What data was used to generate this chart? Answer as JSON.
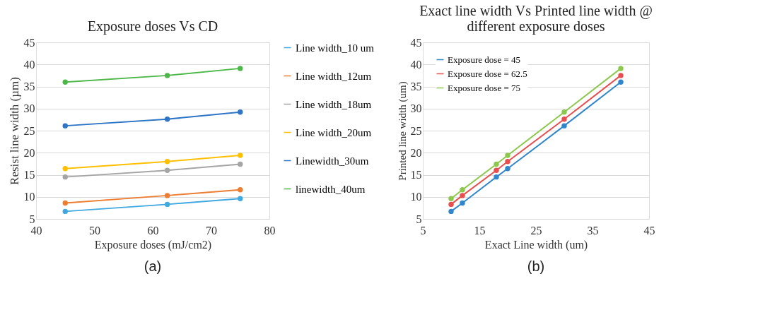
{
  "chart_data": [
    {
      "type": "line",
      "title": "Exposure doses Vs CD",
      "xlabel": "Exposure doses (mJ/cm2)",
      "ylabel": "Resist line width (µm)",
      "x": [
        45,
        62.5,
        75
      ],
      "xlim": [
        40,
        80
      ],
      "xticks": [
        40,
        50,
        60,
        70,
        80
      ],
      "ylim": [
        5,
        45
      ],
      "yticks": [
        5,
        10,
        15,
        20,
        25,
        30,
        35,
        40,
        45
      ],
      "grid": "y",
      "legend": "right",
      "marker": "circle",
      "line_style": "solid",
      "series": [
        {
          "name": "Line width_10 um",
          "color": "#3fa9e0",
          "values": [
            6.7,
            8.3,
            9.6
          ]
        },
        {
          "name": "Line width_12um",
          "color": "#ed7d31",
          "values": [
            8.6,
            10.3,
            11.6
          ]
        },
        {
          "name": "Line width_18um",
          "color": "#a5a5a5",
          "values": [
            14.5,
            16.0,
            17.4
          ]
        },
        {
          "name": "Line width_20um",
          "color": "#ffc000",
          "values": [
            16.4,
            18.0,
            19.4
          ]
        },
        {
          "name": "Linewidth_30um",
          "color": "#2e75c6",
          "values": [
            26.1,
            27.6,
            29.2
          ]
        },
        {
          "name": "linewidth_40um",
          "color": "#4cb848",
          "values": [
            36.0,
            37.5,
            39.1
          ]
        }
      ],
      "annotations": [
        "(a)"
      ]
    },
    {
      "type": "line",
      "title": "Exact line width Vs Printed line width @ different exposure doses",
      "xlabel": "Exact Line width (um)",
      "ylabel": "Printed line width (um)",
      "x": [
        10,
        12,
        18,
        20,
        30,
        40
      ],
      "xlim": [
        5,
        45
      ],
      "xticks": [
        5,
        15,
        25,
        35,
        45
      ],
      "ylim": [
        5,
        45
      ],
      "yticks": [
        5,
        10,
        15,
        20,
        25,
        30,
        35,
        40,
        45
      ],
      "grid": "y",
      "legend": "top left",
      "marker": "circle",
      "line_style": "solid",
      "series": [
        {
          "name": "Exposure dose = 45",
          "color": "#2f86cc",
          "values": [
            6.7,
            8.6,
            14.5,
            16.4,
            26.1,
            36.0
          ]
        },
        {
          "name": "Exposure dose = 62.5",
          "color": "#e84e4e",
          "values": [
            8.3,
            10.3,
            16.0,
            18.0,
            27.6,
            37.5
          ]
        },
        {
          "name": "Exposure dose = 75",
          "color": "#8cc84b",
          "values": [
            9.6,
            11.6,
            17.4,
            19.4,
            29.2,
            39.1
          ]
        }
      ],
      "annotations": [
        "(b)"
      ]
    }
  ]
}
